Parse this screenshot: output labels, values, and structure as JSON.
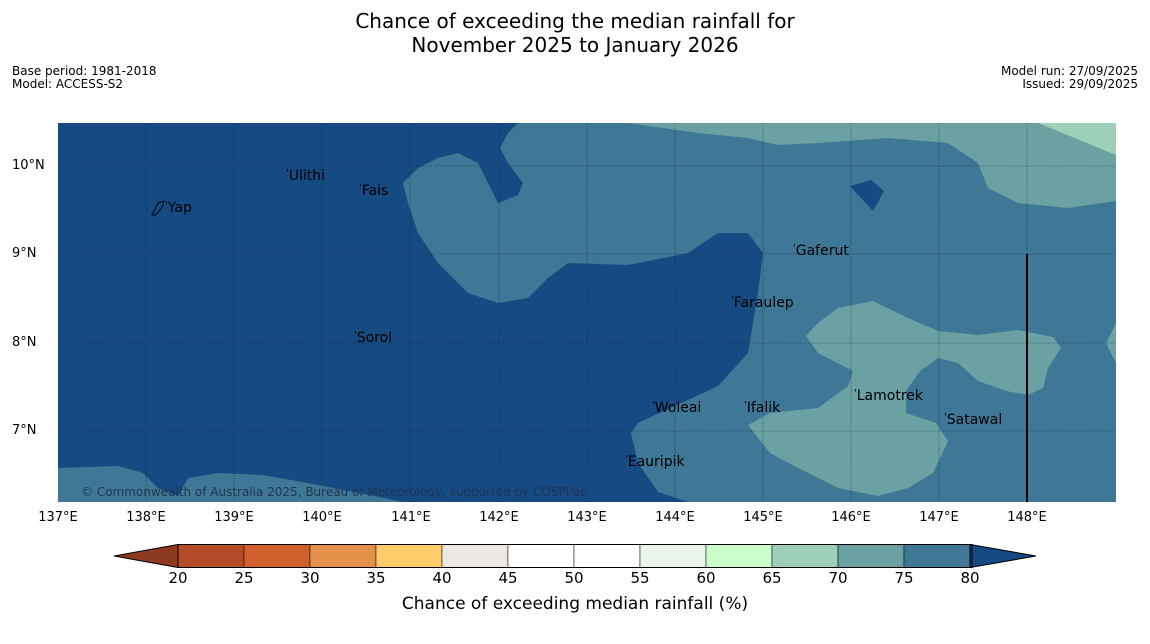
{
  "title": {
    "line1": "Chance of exceeding the median rainfall for",
    "line2": "November 2025 to January 2026"
  },
  "meta": {
    "base_period": "Base period: 1981-2018",
    "model": "Model: ACCESS-S2",
    "model_run": "Model run: 27/09/2025",
    "issued": "Issued: 29/09/2025"
  },
  "map": {
    "lat_labels": [
      "10°N",
      "9°N",
      "8°N",
      "7°N"
    ],
    "lon_labels": [
      "137°E",
      "138°E",
      "139°E",
      "140°E",
      "141°E",
      "142°E",
      "143°E",
      "144°E",
      "145°E",
      "146°E",
      "147°E",
      "148°E"
    ],
    "places": {
      "yap": "Yap",
      "ulithi": "Ulithi",
      "fais": "Fais",
      "gaferut": "Gaferut",
      "faraulep": "Faraulep",
      "sorol": "Sorol",
      "lamotrek": "Lamotrek",
      "woleai": "Woleai",
      "ifalik": "Ifalik",
      "satawal": "Satawal",
      "eauripik": "Eauripik"
    },
    "copyright": "© Commonwealth of Australia 2025, Bureau of Meteorology, supported by COSPPac"
  },
  "colorbar": {
    "ticks": [
      "20",
      "25",
      "30",
      "35",
      "40",
      "45",
      "50",
      "55",
      "60",
      "65",
      "70",
      "75",
      "80"
    ],
    "colors": [
      "#8b3a1f",
      "#b34a28",
      "#d0612f",
      "#e3914a",
      "#fecc69",
      "#ece7e3",
      "#ffffff",
      "#ffffff",
      "#ebf4eb",
      "#ccfecc",
      "#9ecfb8",
      "#6ba1a3",
      "#3f7796",
      "#164a83"
    ],
    "label": "Chance of exceeding median rainfall (%)"
  }
}
